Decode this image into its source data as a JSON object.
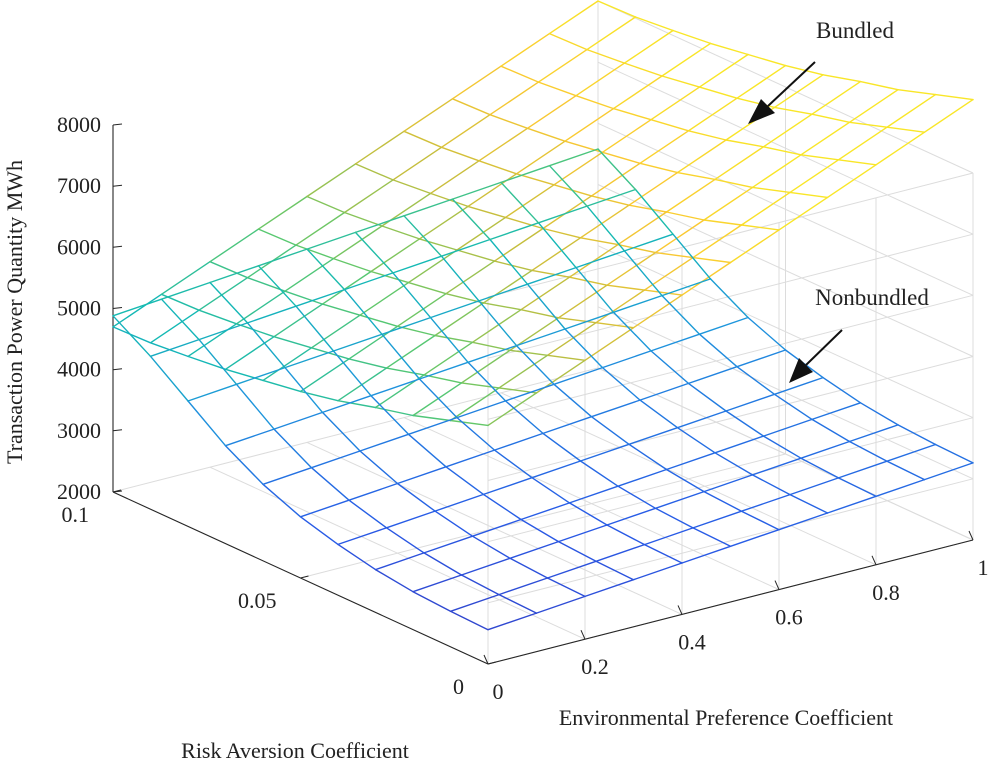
{
  "chart_data": {
    "type": "surface3d",
    "title": "",
    "xlabel": "Risk Aversion Coefficient",
    "ylabel": "Environmental Preference Coefficient",
    "zlabel": "Transaction Power Quantity MWh",
    "xlim": [
      0,
      0.1
    ],
    "ylim": [
      0,
      1
    ],
    "zlim": [
      2000,
      8000
    ],
    "x_ticks": [
      0,
      0.05,
      0.1
    ],
    "x_tick_labels": [
      "0",
      "0.05",
      "0.1"
    ],
    "y_ticks": [
      0,
      0.2,
      0.4,
      0.6,
      0.8,
      1
    ],
    "y_tick_labels": [
      "0",
      "0.2",
      "0.4",
      "0.6",
      "0.8",
      "1"
    ],
    "z_ticks": [
      2000,
      3000,
      4000,
      5000,
      6000,
      7000,
      8000
    ],
    "z_tick_labels": [
      "2000",
      "3000",
      "4000",
      "5000",
      "6000",
      "7000",
      "8000"
    ],
    "grid": true,
    "colormap": "parula",
    "series": [
      {
        "name": "Bundled",
        "annotation": "Bundled",
        "surface_model": "z = z_base_at_x + slope_y * y",
        "x": [
          0,
          0.01,
          0.02,
          0.03,
          0.04,
          0.05,
          0.06,
          0.07,
          0.08,
          0.09,
          0.1
        ],
        "y": [
          0,
          0.1,
          0.2,
          0.3,
          0.4,
          0.5,
          0.6,
          0.7,
          0.8,
          0.9,
          1
        ],
        "z_base_at_x": [
          5900,
          5700,
          5500,
          5350,
          5180,
          5050,
          4950,
          4850,
          4780,
          4720,
          4700
        ],
        "slope_y": 3300
      },
      {
        "name": "Nonbundled",
        "annotation": "Nonbundled",
        "surface_model": "z = z_base_at_x + slope_y * y",
        "x": [
          0,
          0.01,
          0.02,
          0.03,
          0.04,
          0.05,
          0.06,
          0.07,
          0.08,
          0.09,
          0.1
        ],
        "y": [
          0,
          0.1,
          0.2,
          0.3,
          0.4,
          0.5,
          0.6,
          0.7,
          0.8,
          0.9,
          1
        ],
        "z_base_at_x": [
          2560,
          2580,
          2620,
          2700,
          2830,
          3000,
          3250,
          3600,
          4050,
          4500,
          4880
        ],
        "slope_y": 700
      }
    ]
  }
}
